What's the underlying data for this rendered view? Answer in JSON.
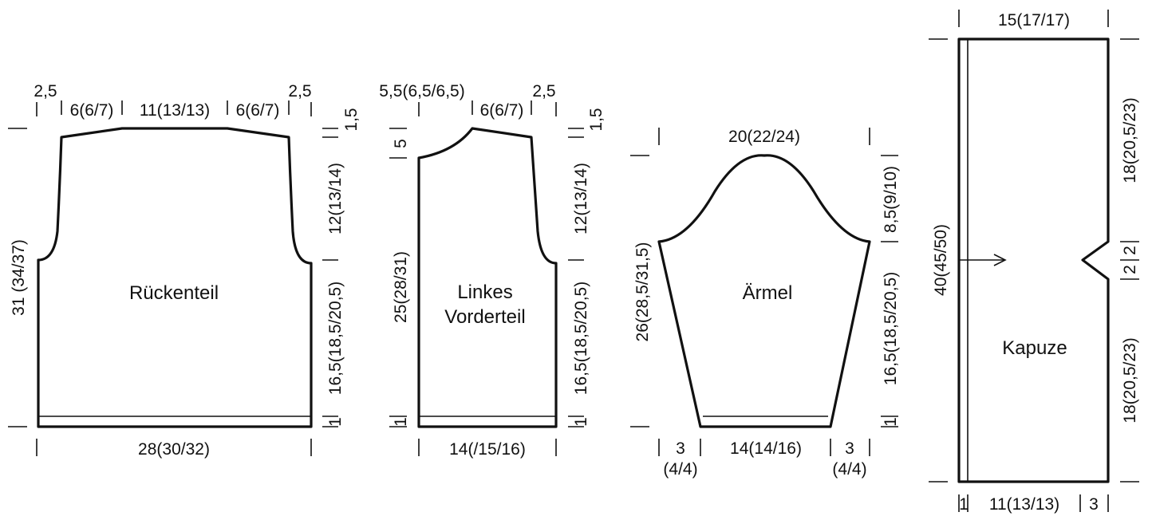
{
  "pieces": {
    "back": {
      "name": "Rückenteil",
      "top_left_margin": "2,5",
      "top_right_margin": "2,5",
      "shoulder_left": "6(6/7)",
      "neck": "11(13/13)",
      "shoulder_right": "6(6/7)",
      "bottom_width": "28(30/32)",
      "total_height": "31 (34/37)",
      "shoulder_slope": "1,5",
      "armhole": "12(13/14)",
      "side": "16,5(18,5/20,5)",
      "rib": "1"
    },
    "front": {
      "name_line1": "Linkes",
      "name_line2": "Vorderteil",
      "top_left_margin": "5,5(6,5/6,5)",
      "top_right_margin": "2,5",
      "shoulder": "6(6/7)",
      "neck_depth": "5",
      "total_height": "25(28/31)",
      "rib": "1",
      "shoulder_slope": "1,5",
      "armhole": "12(13/14)",
      "side": "16,5(18,5/20,5)",
      "bottom_width": "14(/15/16)"
    },
    "sleeve": {
      "name": "Ärmel",
      "top_width": "20(22/24)",
      "height": "26(28,5/31,5)",
      "cap": "8,5(9/10)",
      "side": "16,5(18,5/20,5)",
      "rib": "1",
      "bottom_left_a": "3",
      "bottom_left_b": "(4/4)",
      "bottom_center": "14(14/16)",
      "bottom_right_a": "3",
      "bottom_right_b": "(4/4)"
    },
    "hood": {
      "name": "Kapuze",
      "top_width": "15(17/17)",
      "height": "40(45/50)",
      "upper": "18(20,5/23)",
      "notch_a": "2",
      "notch_b": "2",
      "lower": "18(20,5/23)",
      "bottom_edge": "1",
      "bottom_center": "11(13/13)",
      "bottom_right": "3"
    }
  }
}
